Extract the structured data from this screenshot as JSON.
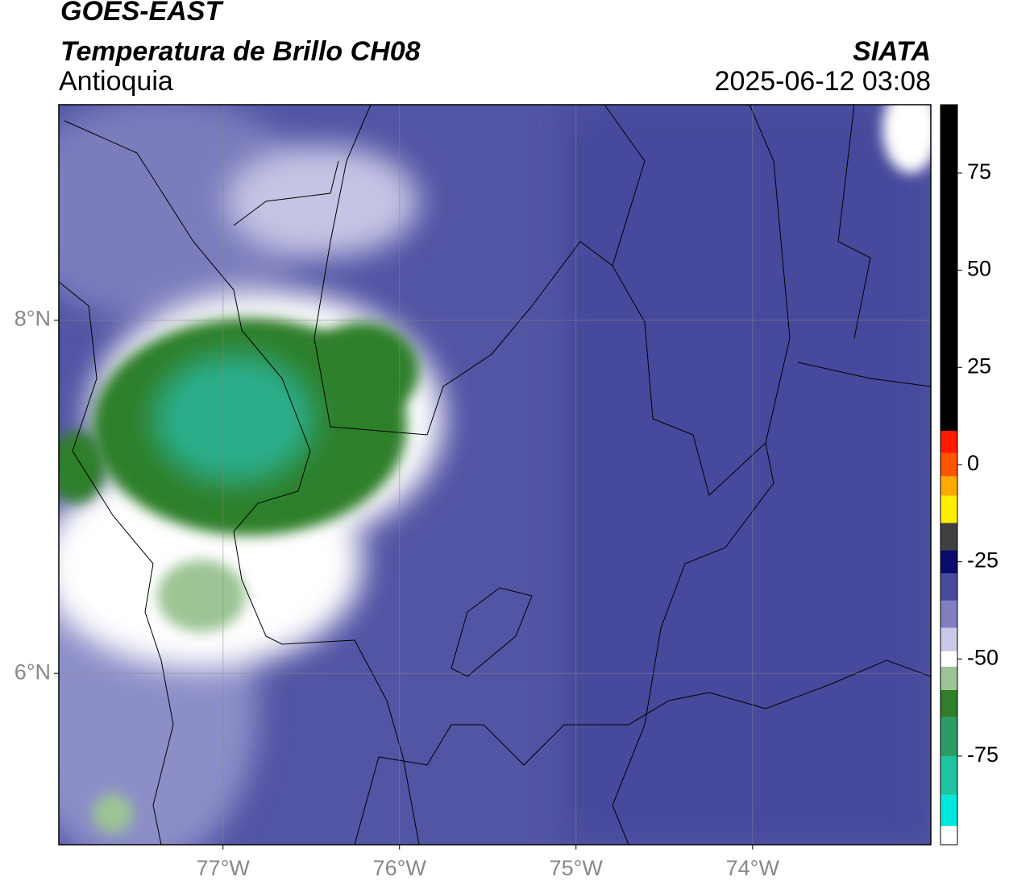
{
  "header": {
    "title": "GOES-EAST",
    "subtitle": "Temperatura de Brillo CH08",
    "region": "Antioquia",
    "source": "SIATA",
    "datetime": "2025-06-12 03:08"
  },
  "map": {
    "xlim": [
      -77.93,
      -72.99
    ],
    "ylim": [
      5.03,
      9.22
    ],
    "grid": true,
    "xticks": [
      {
        "value": -77,
        "label": "77°W"
      },
      {
        "value": -76,
        "label": "76°W"
      },
      {
        "value": -75,
        "label": "75°W"
      },
      {
        "value": -74,
        "label": "74°W"
      }
    ],
    "yticks": [
      {
        "value": 8,
        "label": "8°N"
      },
      {
        "value": 6,
        "label": "6°N"
      }
    ],
    "colorbar": {
      "lim": [
        -97.8,
        92.6
      ],
      "ticks": [
        75,
        50,
        25,
        0,
        -25,
        -50,
        -75
      ],
      "levels": [
        -97.8,
        -93,
        -85,
        -75,
        -65,
        -58,
        -52,
        -48,
        -42,
        -35,
        -28,
        -22,
        -15,
        -8,
        -3,
        3,
        8.7,
        92.6
      ],
      "colors": [
        "#ffffff",
        "#00e8dc",
        "#20c4a0",
        "#2a9c64",
        "#2f7f2a",
        "#9cc494",
        "#ffffff",
        "#c8c8e8",
        "#8080c0",
        "#4a4aa0",
        "#0a0a6a",
        "#404040",
        "#ffee00",
        "#ffaa00",
        "#ff5500",
        "#ff1a00",
        "#000000"
      ]
    }
  }
}
